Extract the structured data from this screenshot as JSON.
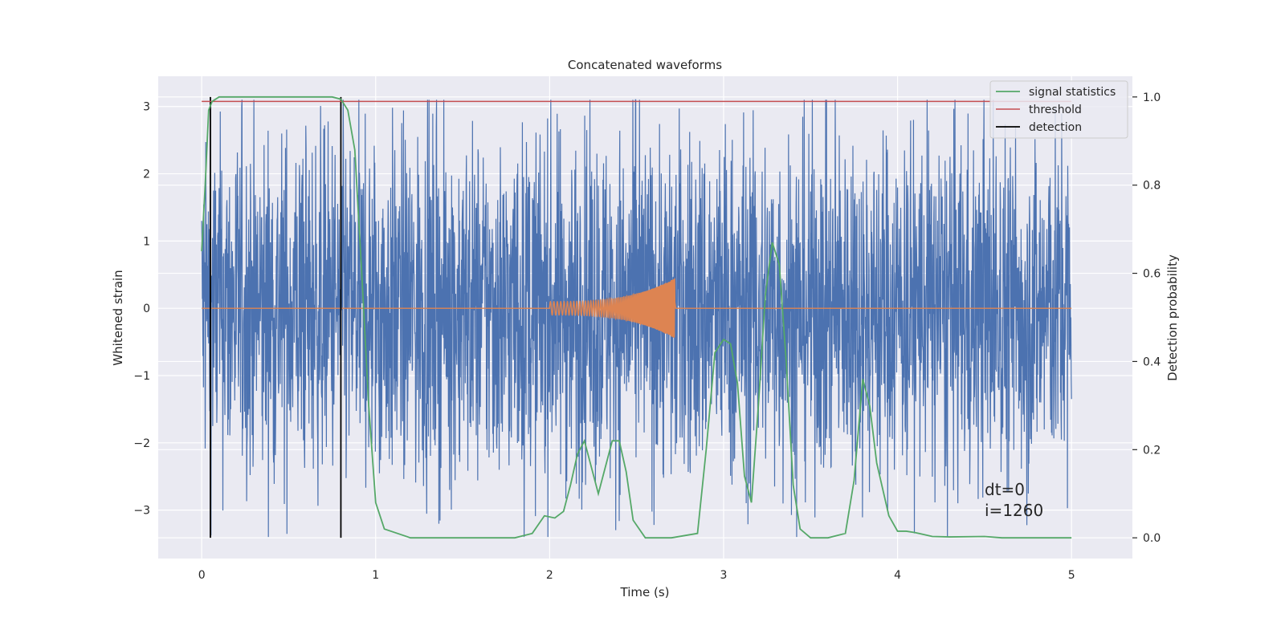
{
  "chart_data": {
    "type": "line",
    "title": "Concatenated waveforms",
    "xlabel": "Time (s)",
    "ylabel": "Whitened strain",
    "y2label": "Detection probability",
    "xlim": [
      -0.25,
      5.35
    ],
    "ylim": [
      -3.72,
      3.45
    ],
    "y2lim": [
      -0.047,
      1.047
    ],
    "xticks": [
      0,
      1,
      2,
      3,
      4,
      5
    ],
    "yticks": [
      -3,
      -2,
      -1,
      0,
      1,
      2,
      3
    ],
    "y2ticks": [
      0.0,
      0.2,
      0.4,
      0.6,
      0.8,
      1.0
    ],
    "x_tick_labels": [
      "0",
      "1",
      "2",
      "3",
      "4",
      "5"
    ],
    "y_tick_labels": [
      "−3",
      "−2",
      "−1",
      "0",
      "1",
      "2",
      "3"
    ],
    "y2_tick_labels": [
      "0.0",
      "0.2",
      "0.4",
      "0.6",
      "0.8",
      "1.0"
    ],
    "grid": true,
    "legend_position": "top-right",
    "series": [
      {
        "name": "",
        "axis": "left",
        "color": "#4c72b0",
        "kind": "noise",
        "description_values": {
          "t_start": 0,
          "t_end": 5,
          "typical_amplitude": 1.3,
          "peak_max": 3.1,
          "peak_min": -3.4
        }
      },
      {
        "name": "",
        "axis": "left",
        "color": "#dd8452",
        "kind": "chirp",
        "description_values": {
          "t_start": 0,
          "t_end": 5,
          "chirp_start": 2.0,
          "chirp_end": 2.72,
          "start_amplitude": 0.1,
          "peak_amplitude": 0.45
        }
      },
      {
        "name": "signal statistics",
        "axis": "right",
        "color": "#55a868",
        "x": [
          0,
          0.02,
          0.04,
          0.06,
          0.1,
          0.2,
          0.4,
          0.6,
          0.75,
          0.8,
          0.84,
          0.88,
          0.92,
          0.96,
          1.0,
          1.05,
          1.2,
          1.5,
          1.8,
          1.9,
          1.97,
          2.03,
          2.08,
          2.12,
          2.16,
          2.2,
          2.24,
          2.28,
          2.32,
          2.36,
          2.4,
          2.44,
          2.48,
          2.55,
          2.7,
          2.85,
          2.9,
          2.95,
          3.0,
          3.04,
          3.08,
          3.12,
          3.16,
          3.2,
          3.24,
          3.28,
          3.32,
          3.36,
          3.4,
          3.44,
          3.5,
          3.6,
          3.7,
          3.75,
          3.8,
          3.84,
          3.88,
          3.95,
          4.0,
          4.05,
          4.1,
          4.2,
          4.3,
          4.5,
          4.6,
          5.0
        ],
        "values": [
          0.65,
          0.8,
          0.97,
          0.99,
          1.0,
          1.0,
          1.0,
          1.0,
          1.0,
          0.995,
          0.97,
          0.88,
          0.6,
          0.3,
          0.08,
          0.02,
          0.0,
          0.0,
          0.0,
          0.01,
          0.05,
          0.045,
          0.06,
          0.12,
          0.19,
          0.22,
          0.16,
          0.1,
          0.16,
          0.22,
          0.22,
          0.15,
          0.04,
          0.0,
          0.0,
          0.01,
          0.2,
          0.42,
          0.45,
          0.44,
          0.35,
          0.14,
          0.08,
          0.3,
          0.55,
          0.67,
          0.62,
          0.4,
          0.12,
          0.02,
          0.0,
          0.0,
          0.01,
          0.13,
          0.36,
          0.3,
          0.17,
          0.05,
          0.015,
          0.015,
          0.012,
          0.003,
          0.002,
          0.003,
          0.0,
          0.0
        ]
      },
      {
        "name": "threshold",
        "axis": "right",
        "color": "#c44e52",
        "x": [
          0,
          5
        ],
        "values": [
          0.99,
          0.99
        ]
      },
      {
        "name": "detection",
        "axis": "right",
        "color": "#000000",
        "vlines": [
          0.05,
          0.8
        ],
        "span": [
          0.0,
          1.0
        ]
      }
    ],
    "annotations": [
      "dt=0",
      "i=1260"
    ]
  }
}
